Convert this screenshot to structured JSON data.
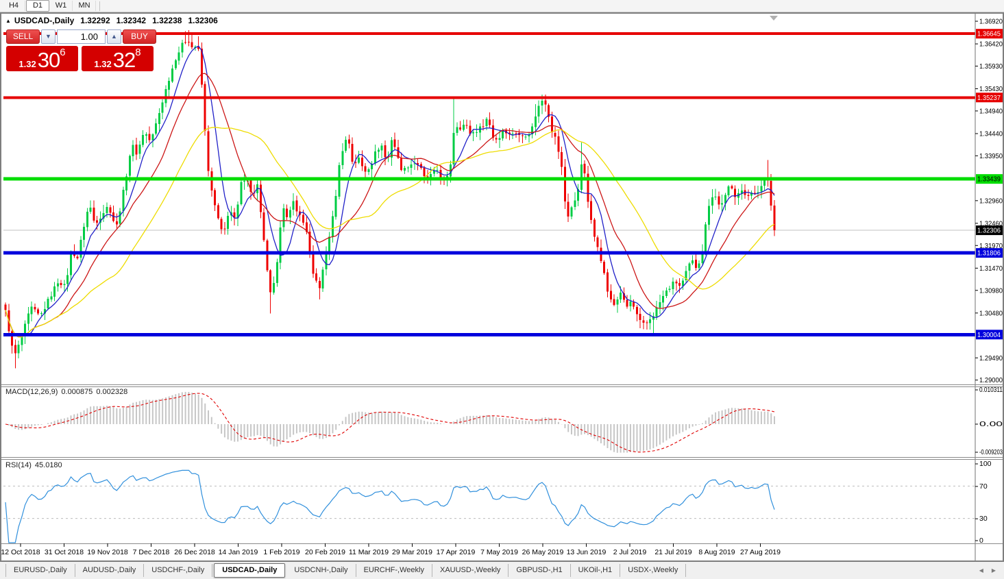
{
  "toolbar": {
    "timeframes": [
      {
        "label": "H4",
        "active": false
      },
      {
        "label": "D1",
        "active": true
      },
      {
        "label": "W1",
        "active": false
      },
      {
        "label": "MN",
        "active": false
      }
    ]
  },
  "icons": {
    "collapse": "▲",
    "spinner_down": "▼",
    "spinner_up": "▲",
    "tab_prev": "◀",
    "tab_next": "▶"
  },
  "chart": {
    "title": {
      "symbol": "USDCAD-,Daily",
      "open": "1.32292",
      "high": "1.32342",
      "low": "1.32238",
      "close": "1.32306"
    },
    "trade_panel": {
      "sell_label": "SELL",
      "buy_label": "BUY",
      "volume": "1.00",
      "sell_price": {
        "base": "1.32",
        "big": "30",
        "pip": "6"
      },
      "buy_price": {
        "base": "1.32",
        "big": "32",
        "pip": "8"
      }
    }
  },
  "chart_data": {
    "type": "candlestick",
    "title": "USDCAD-,Daily",
    "symbol": "USDCAD",
    "timeframe": "Daily",
    "num_candles": 236,
    "visible_range": {
      "price_min": 1.2892,
      "price_max": 1.36965
    },
    "price_axis_ticks": [
      "1.36920",
      "1.36420",
      "1.35930",
      "1.35430",
      "1.34940",
      "1.34440",
      "1.33950",
      "1.32960",
      "1.32460",
      "1.31970",
      "1.31470",
      "1.30980",
      "1.30480",
      "1.29490",
      "1.29000"
    ],
    "x_axis_dates": [
      "12 Oct 2018",
      "31 Oct 2018",
      "19 Nov 2018",
      "7 Dec 2018",
      "26 Dec 2018",
      "14 Jan 2019",
      "1 Feb 2019",
      "20 Feb 2019",
      "11 Mar 2019",
      "29 Mar 2019",
      "17 Apr 2019",
      "7 May 2019",
      "26 May 2019",
      "13 Jun 2019",
      "2 Jul 2019",
      "21 Jul 2019",
      "8 Aug 2019",
      "27 Aug 2019"
    ],
    "levels": [
      {
        "price": 1.36645,
        "label": "1.36645",
        "color": "#e60000",
        "text": "#ffffff",
        "width": 4
      },
      {
        "price": 1.35237,
        "label": "1.35237",
        "color": "#e60000",
        "text": "#ffffff",
        "width": 4
      },
      {
        "price": 1.33439,
        "label": "1.33439",
        "color": "#00dd00",
        "text": "#000000",
        "width": 5
      },
      {
        "price": 1.31806,
        "label": "1.31806",
        "color": "#0000dd",
        "text": "#ffffff",
        "width": 5
      },
      {
        "price": 1.30004,
        "label": "1.30004",
        "color": "#0000dd",
        "text": "#ffffff",
        "width": 5
      }
    ],
    "current_price": 1.32306,
    "current_price_label": "1.32306",
    "colors": {
      "candle_up": "#00cc44",
      "candle_down": "#ee0000",
      "current_line": "#c0c0c0",
      "current_badge_bg": "#000000",
      "current_badge_text": "#ffffff",
      "axis_text": "#000000",
      "grid_dashed": "#bcbcbc"
    },
    "moving_averages": [
      {
        "period": 7,
        "color": "#2020c8"
      },
      {
        "period": 16,
        "color": "#cc1616"
      },
      {
        "period": 34,
        "color": "#eedc00"
      }
    ],
    "close_path_anchors": [
      [
        0.0,
        1.3051
      ],
      [
        0.011,
        1.295
      ],
      [
        0.02,
        1.2988
      ],
      [
        0.033,
        1.306
      ],
      [
        0.045,
        1.304
      ],
      [
        0.057,
        1.308
      ],
      [
        0.069,
        1.312
      ],
      [
        0.078,
        1.3105
      ],
      [
        0.086,
        1.319
      ],
      [
        0.093,
        1.3165
      ],
      [
        0.102,
        1.324
      ],
      [
        0.109,
        1.329
      ],
      [
        0.116,
        1.3245
      ],
      [
        0.125,
        1.3265
      ],
      [
        0.134,
        1.3285
      ],
      [
        0.144,
        1.3235
      ],
      [
        0.155,
        1.333
      ],
      [
        0.164,
        1.342
      ],
      [
        0.171,
        1.34
      ],
      [
        0.18,
        1.345
      ],
      [
        0.189,
        1.3425
      ],
      [
        0.2,
        1.349
      ],
      [
        0.21,
        1.355
      ],
      [
        0.221,
        1.361
      ],
      [
        0.23,
        1.364
      ],
      [
        0.237,
        1.3655
      ],
      [
        0.244,
        1.363
      ],
      [
        0.25,
        1.3645
      ],
      [
        0.255,
        1.356
      ],
      [
        0.259,
        1.346
      ],
      [
        0.262,
        1.3395
      ],
      [
        0.266,
        1.333
      ],
      [
        0.275,
        1.3265
      ],
      [
        0.283,
        1.3215
      ],
      [
        0.291,
        1.328
      ],
      [
        0.299,
        1.325
      ],
      [
        0.307,
        1.334
      ],
      [
        0.314,
        1.335
      ],
      [
        0.321,
        1.33
      ],
      [
        0.327,
        1.334
      ],
      [
        0.333,
        1.325
      ],
      [
        0.34,
        1.315
      ],
      [
        0.345,
        1.3085
      ],
      [
        0.352,
        1.313
      ],
      [
        0.36,
        1.3295
      ],
      [
        0.367,
        1.325
      ],
      [
        0.374,
        1.3295
      ],
      [
        0.382,
        1.3265
      ],
      [
        0.391,
        1.3235
      ],
      [
        0.4,
        1.313
      ],
      [
        0.409,
        1.3105
      ],
      [
        0.418,
        1.319
      ],
      [
        0.427,
        1.327
      ],
      [
        0.436,
        1.34
      ],
      [
        0.445,
        1.344
      ],
      [
        0.452,
        1.3375
      ],
      [
        0.459,
        1.339
      ],
      [
        0.467,
        1.336
      ],
      [
        0.475,
        1.3375
      ],
      [
        0.483,
        1.341
      ],
      [
        0.49,
        1.3418
      ],
      [
        0.496,
        1.3375
      ],
      [
        0.503,
        1.344
      ],
      [
        0.51,
        1.339
      ],
      [
        0.517,
        1.336
      ],
      [
        0.524,
        1.3375
      ],
      [
        0.531,
        1.338
      ],
      [
        0.538,
        1.3375
      ],
      [
        0.545,
        1.3345
      ],
      [
        0.554,
        1.3352
      ],
      [
        0.562,
        1.3365
      ],
      [
        0.569,
        1.3338
      ],
      [
        0.577,
        1.335
      ],
      [
        0.584,
        1.3465
      ],
      [
        0.591,
        1.3458
      ],
      [
        0.598,
        1.3465
      ],
      [
        0.605,
        1.3443
      ],
      [
        0.612,
        1.345
      ],
      [
        0.619,
        1.3458
      ],
      [
        0.627,
        1.348
      ],
      [
        0.634,
        1.3437
      ],
      [
        0.641,
        1.343
      ],
      [
        0.648,
        1.3458
      ],
      [
        0.655,
        1.344
      ],
      [
        0.662,
        1.345
      ],
      [
        0.669,
        1.3437
      ],
      [
        0.677,
        1.3443
      ],
      [
        0.684,
        1.345
      ],
      [
        0.691,
        1.3495
      ],
      [
        0.698,
        1.3518
      ],
      [
        0.704,
        1.351
      ],
      [
        0.709,
        1.3458
      ],
      [
        0.716,
        1.343
      ],
      [
        0.723,
        1.3375
      ],
      [
        0.73,
        1.3255
      ],
      [
        0.737,
        1.3285
      ],
      [
        0.743,
        1.33
      ],
      [
        0.75,
        1.3395
      ],
      [
        0.757,
        1.33
      ],
      [
        0.764,
        1.3225
      ],
      [
        0.771,
        1.3195
      ],
      [
        0.778,
        1.314
      ],
      [
        0.785,
        1.308
      ],
      [
        0.792,
        1.3065
      ],
      [
        0.8,
        1.3095
      ],
      [
        0.807,
        1.3058
      ],
      [
        0.814,
        1.3075
      ],
      [
        0.821,
        1.3043
      ],
      [
        0.828,
        1.302
      ],
      [
        0.835,
        1.3028
      ],
      [
        0.842,
        1.3043
      ],
      [
        0.849,
        1.3065
      ],
      [
        0.857,
        1.309
      ],
      [
        0.864,
        1.3105
      ],
      [
        0.871,
        1.3118
      ],
      [
        0.878,
        1.3105
      ],
      [
        0.885,
        1.3135
      ],
      [
        0.892,
        1.3165
      ],
      [
        0.899,
        1.3148
      ],
      [
        0.906,
        1.318
      ],
      [
        0.914,
        1.3285
      ],
      [
        0.921,
        1.3315
      ],
      [
        0.928,
        1.3285
      ],
      [
        0.935,
        1.33
      ],
      [
        0.942,
        1.333
      ],
      [
        0.949,
        1.3308
      ],
      [
        0.956,
        1.3323
      ],
      [
        0.963,
        1.33
      ],
      [
        0.971,
        1.332
      ],
      [
        0.978,
        1.331
      ],
      [
        0.985,
        1.333
      ],
      [
        0.99,
        1.336
      ],
      [
        0.996,
        1.3282
      ],
      [
        1.0,
        1.32306
      ]
    ],
    "spikes": [
      {
        "t": 0.011,
        "low": 1.2926
      },
      {
        "t": 0.232,
        "high": 1.367
      },
      {
        "t": 0.237,
        "high": 1.3672
      },
      {
        "t": 0.244,
        "high": 1.3665
      },
      {
        "t": 0.25,
        "high": 1.3659
      },
      {
        "t": 0.345,
        "low": 1.3047
      },
      {
        "t": 0.409,
        "low": 1.3078
      },
      {
        "t": 0.584,
        "high": 1.3522
      },
      {
        "t": 0.691,
        "high": 1.3509
      },
      {
        "t": 0.698,
        "high": 1.3529
      },
      {
        "t": 0.75,
        "high": 1.3424
      },
      {
        "t": 0.828,
        "low": 1.3012
      },
      {
        "t": 0.842,
        "low": 1.3004
      },
      {
        "t": 0.99,
        "high": 1.3386
      }
    ],
    "macd": {
      "label": "MACD(12,26,9)",
      "value_main": "0.000875",
      "value_signal": "0.002328",
      "params": [
        12,
        26,
        9
      ],
      "scale_ticks": [
        "0.010311",
        "0.00",
        "-0.009203"
      ],
      "scale_max": 0.010311,
      "scale_min": -0.009203,
      "histogram_color": "#c6c6c6",
      "signal_color": "#e00000"
    },
    "rsi": {
      "label": "RSI(14)",
      "value": "45.0180",
      "period": 14,
      "scale_ticks": [
        "100",
        "70",
        "30",
        "0"
      ],
      "levels": [
        70,
        30
      ],
      "color": "#2f8fdc"
    }
  },
  "tabs": {
    "items": [
      {
        "label": "EURUSD-,Daily",
        "active": false
      },
      {
        "label": "AUDUSD-,Daily",
        "active": false
      },
      {
        "label": "USDCHF-,Daily",
        "active": false
      },
      {
        "label": "USDCAD-,Daily",
        "active": true
      },
      {
        "label": "USDCNH-,Daily",
        "active": false
      },
      {
        "label": "EURCHF-,Weekly",
        "active": false
      },
      {
        "label": "XAUUSD-,Weekly",
        "active": false
      },
      {
        "label": "GBPUSD-,H1",
        "active": false
      },
      {
        "label": "UKOil-,H1",
        "active": false
      },
      {
        "label": "USDX-,Weekly",
        "active": false
      }
    ]
  }
}
